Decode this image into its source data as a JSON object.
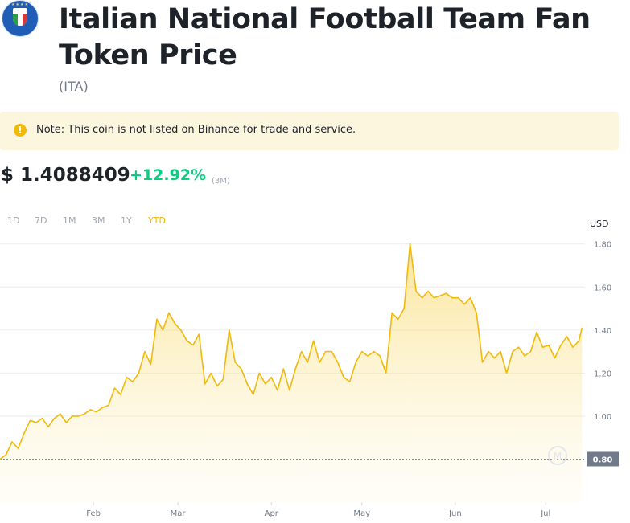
{
  "header": {
    "title": "Italian National Football Team Fan Token Price",
    "symbol": "(ITA)"
  },
  "note": {
    "text": "Note: This coin is not listed on Binance for trade and service."
  },
  "price": {
    "value": "$ 1.4088409",
    "change": "+12.92%",
    "period": "(3M)"
  },
  "ranges": [
    "1D",
    "7D",
    "1M",
    "3M",
    "1Y",
    "YTD"
  ],
  "active_range": "YTD",
  "colors": {
    "accent": "#f0b90b",
    "positive": "#0ecb81",
    "line": "#f0b90b"
  },
  "chart_data": {
    "type": "area",
    "unit_label": "USD",
    "ylim": [
      0.6,
      1.87
    ],
    "yticks": [
      0.8,
      1.0,
      1.2,
      1.4,
      1.6,
      1.8
    ],
    "ytick_labels": [
      "",
      "1.00",
      "1.20",
      "1.40",
      "1.60",
      "1.80"
    ],
    "baseline": {
      "value": 0.8,
      "label": "0.80"
    },
    "xticks": [
      {
        "label": "Feb",
        "day": 32
      },
      {
        "label": "Mar",
        "day": 60
      },
      {
        "label": "Apr",
        "day": 91
      },
      {
        "label": "May",
        "day": 121
      },
      {
        "label": "Jun",
        "day": 152
      },
      {
        "label": "Jul",
        "day": 182
      }
    ],
    "xlim": [
      1,
      195
    ],
    "series": [
      {
        "x": [
          1,
          3,
          5,
          7,
          9,
          11,
          13,
          15,
          17,
          19,
          21,
          23,
          25,
          27,
          29,
          31,
          33,
          35,
          37,
          39,
          41,
          43,
          45,
          47,
          49,
          51,
          53,
          55,
          57,
          59,
          61,
          63,
          65,
          67,
          69,
          71,
          73,
          75,
          77,
          79,
          81,
          83,
          85,
          87,
          89,
          91,
          93,
          95,
          97,
          99,
          101,
          103,
          105,
          107,
          109,
          111,
          113,
          115,
          117,
          119,
          121,
          123,
          125,
          127,
          129,
          131,
          133,
          135,
          137,
          139,
          141,
          143,
          145,
          147,
          149,
          151,
          153,
          155,
          157,
          159,
          161,
          163,
          165,
          167,
          169,
          171,
          173,
          175,
          177,
          179,
          181,
          183,
          185,
          187,
          189,
          191,
          193,
          194
        ],
        "values": [
          0.8,
          0.82,
          0.88,
          0.85,
          0.92,
          0.98,
          0.97,
          0.99,
          0.95,
          0.99,
          1.01,
          0.97,
          1.0,
          1.0,
          1.01,
          1.03,
          1.02,
          1.04,
          1.05,
          1.13,
          1.1,
          1.18,
          1.16,
          1.2,
          1.3,
          1.24,
          1.45,
          1.4,
          1.48,
          1.43,
          1.4,
          1.35,
          1.33,
          1.38,
          1.15,
          1.2,
          1.14,
          1.17,
          1.4,
          1.25,
          1.22,
          1.15,
          1.1,
          1.2,
          1.15,
          1.18,
          1.12,
          1.22,
          1.12,
          1.22,
          1.3,
          1.25,
          1.35,
          1.25,
          1.3,
          1.3,
          1.25,
          1.18,
          1.16,
          1.25,
          1.3,
          1.28,
          1.3,
          1.28,
          1.2,
          1.48,
          1.45,
          1.5,
          1.8,
          1.58,
          1.55,
          1.58,
          1.55,
          1.56,
          1.57,
          1.55,
          1.55,
          1.52,
          1.55,
          1.48,
          1.25,
          1.3,
          1.27,
          1.3,
          1.2,
          1.3,
          1.32,
          1.28,
          1.3,
          1.39,
          1.32,
          1.33,
          1.27,
          1.33,
          1.37,
          1.32,
          1.35,
          1.41
        ]
      }
    ]
  }
}
